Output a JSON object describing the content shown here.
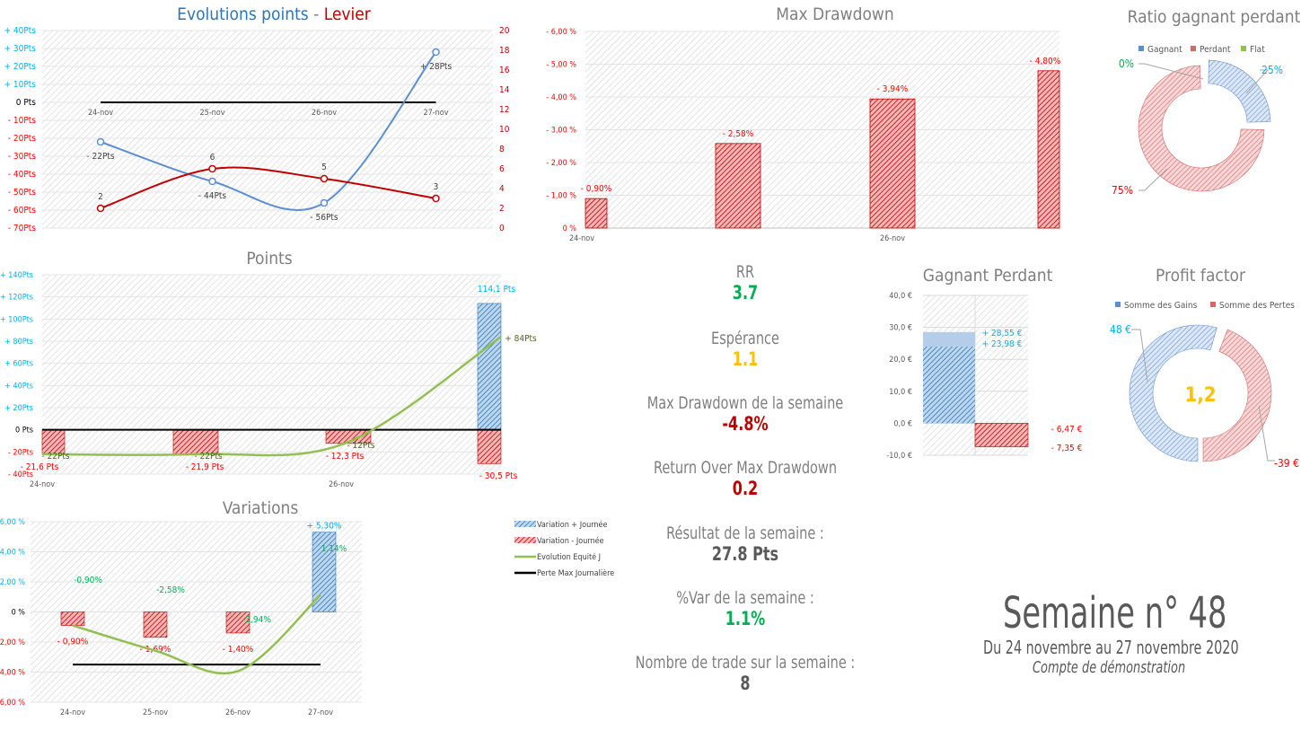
{
  "colors": {
    "blue": "#5b8fd1",
    "blue_fill": "#2e75b6",
    "red": "#c00000",
    "red_label": "#ff0000",
    "green_line": "#92c050",
    "green_text": "#00b050",
    "cyan_text": "#00b0f0",
    "gold": "#ffc000",
    "grey_text": "#7f7f7f",
    "dark_text": "#595959"
  },
  "charts": {
    "evolution": {
      "title_part1": "Evolutions points",
      "title_sep": " - ",
      "title_part2": "Levier"
    },
    "max_drawdown": {
      "title": "Max Drawdown"
    },
    "ratio": {
      "title": "Ratio gagnant perdant"
    },
    "points": {
      "title": "Points"
    },
    "variations": {
      "title": "Variations"
    },
    "gagnant_perdant": {
      "title": "Gagnant Perdant"
    },
    "profit_factor": {
      "title": "Profit factor",
      "center": "1,2"
    }
  },
  "stats": [
    {
      "label": "RR",
      "value": "3.7",
      "color": "#00b050"
    },
    {
      "label": "Espérance",
      "value": "1.1",
      "color": "#ffc000"
    },
    {
      "label": "Max Drawdown de la semaine",
      "value": "-4.8%",
      "color": "#c00000"
    },
    {
      "label": "Return Over Max Drawdown",
      "value": "0.2",
      "color": "#c00000"
    },
    {
      "label": "Résultat de la semaine :",
      "value": "27.8 Pts",
      "color": "#595959"
    },
    {
      "label": "%Var de la semaine :",
      "value": "1.1%",
      "color": "#00b050"
    },
    {
      "label": "Nombre de trade sur la semaine :",
      "value": "8",
      "color": "#595959"
    }
  ],
  "week": {
    "title": "Semaine n° 48",
    "range": "Du 24 novembre    au    27 novembre 2020",
    "account": "Compte de démonstration"
  },
  "chart_data": [
    {
      "id": "evolution",
      "type": "line",
      "title": "Evolutions points - Levier",
      "categories": [
        "24-nov",
        "25-nov",
        "26-nov",
        "27-nov"
      ],
      "y_left": {
        "range": [
          -70,
          40
        ],
        "ticks": [
          40,
          30,
          20,
          10,
          0,
          -10,
          -20,
          -30,
          -40,
          -50,
          -60,
          -70
        ],
        "tick_labels": [
          "+ 40Pts",
          "+ 30Pts",
          "+ 20Pts",
          "+ 10Pts",
          "0 Pts",
          "- 10Pts",
          "- 20Pts",
          "- 30Pts",
          "- 40Pts",
          "- 50Pts",
          "- 60Pts",
          "- 70Pts"
        ]
      },
      "y_right": {
        "range": [
          0,
          20
        ],
        "ticks": [
          20,
          18,
          16,
          14,
          12,
          10,
          8,
          6,
          4,
          2,
          0
        ]
      },
      "series": [
        {
          "name": "Points",
          "axis": "left",
          "values": [
            -22,
            -44,
            -56,
            28
          ],
          "labels": [
            "- 22Pts",
            "- 44Pts",
            "- 56Pts",
            "+ 28Pts"
          ]
        },
        {
          "name": "Levier",
          "axis": "right",
          "values": [
            2,
            6,
            5,
            3
          ],
          "labels": [
            "2",
            "6",
            "5",
            "3"
          ]
        }
      ],
      "zero_line": 0
    },
    {
      "id": "max_drawdown",
      "type": "bar",
      "title": "Max Drawdown",
      "categories": [
        "24-nov",
        "25-nov",
        "26-nov",
        "27-nov"
      ],
      "x_tick_labels": [
        "24-nov",
        "",
        "26-nov",
        ""
      ],
      "values": [
        0.9,
        2.58,
        3.94,
        4.8
      ],
      "labels": [
        "- 0,90%",
        "- 2,58%",
        "- 3,94%",
        "- 4,80%"
      ],
      "y_range": [
        0,
        6
      ],
      "tick_labels": [
        "- 6,00 %",
        "- 5,00 %",
        "- 4,00 %",
        "- 3,00 %",
        "- 2,00 %",
        "- 1,00 %",
        "0 %"
      ]
    },
    {
      "id": "ratio",
      "type": "pie",
      "title": "Ratio gagnant perdant",
      "legend": [
        "Gagnant",
        "Perdant",
        "Flat"
      ],
      "values": [
        25,
        75,
        0
      ],
      "labels": [
        "25%",
        "75%",
        "0%"
      ]
    },
    {
      "id": "points",
      "type": "bar",
      "title": "Points",
      "categories": [
        "24-nov",
        "25-nov",
        "26-nov",
        "27-nov"
      ],
      "x_tick_labels": [
        "24-nov",
        "",
        "26-nov",
        ""
      ],
      "y_range": [
        -40,
        140
      ],
      "tick_labels": [
        "+ 140Pts",
        "+ 120Pts",
        "+ 100Pts",
        "+ 80Pts",
        "+ 60Pts",
        "+ 40Pts",
        "+ 20Pts",
        "0 Pts",
        "- 20Pts",
        "- 40Pts"
      ],
      "series": [
        {
          "name": "Gains",
          "values": [
            0,
            0,
            0,
            114.1
          ],
          "labels": [
            "",
            "",
            "",
            "114,1 Pts"
          ]
        },
        {
          "name": "Pertes",
          "values": [
            -21.6,
            -21.9,
            -12.3,
            -30.5
          ],
          "labels": [
            "- 21,6 Pts",
            "- 21,9 Pts",
            "- 12,3 Pts",
            "- 30,5 Pts"
          ]
        },
        {
          "name": "Cumul",
          "values": [
            -22,
            -22,
            -12,
            84
          ],
          "labels": [
            "- 22Pts",
            "- 22Pts",
            "- 12Pts",
            "+ 84Pts"
          ]
        }
      ]
    },
    {
      "id": "variations",
      "type": "bar",
      "title": "Variations",
      "categories": [
        "24-nov",
        "25-nov",
        "26-nov",
        "27-nov"
      ],
      "y_range": [
        -6,
        6
      ],
      "tick_labels": [
        "+ 6,00 %",
        "+ 4,00 %",
        "+ 2,00 %",
        "0 %",
        "- 2,00 %",
        "- 4,00 %",
        "- 6,00 %"
      ],
      "series": [
        {
          "name": "Variation + Journée",
          "values": [
            0,
            0,
            0,
            5.3
          ],
          "labels": [
            "",
            "",
            "",
            "+ 5,30%"
          ]
        },
        {
          "name": "Variation - Journée",
          "values": [
            -0.9,
            -1.69,
            -1.4,
            0
          ],
          "labels": [
            "- 0,90%",
            "- 1,69%",
            "- 1,40%",
            ""
          ]
        },
        {
          "name": "Evolution  Equité J",
          "values": [
            -0.9,
            -2.58,
            -3.94,
            1.14
          ],
          "labels": [
            "-0,90%",
            "-2,58%",
            "-3,94%",
            "1,14%"
          ]
        },
        {
          "name": "Perte Max Journalière",
          "values": [
            -3.5,
            -3.5,
            -3.5,
            -3.5
          ]
        }
      ]
    },
    {
      "id": "gagnant_perdant",
      "type": "bar",
      "title": "Gagnant Perdant",
      "y_range": [
        -10,
        40
      ],
      "tick_labels": [
        "40,0 €",
        "30,0 €",
        "20,0 €",
        "10,0 €",
        "0,0 €",
        "-10,0 €"
      ],
      "series": [
        {
          "name": "Gagnant",
          "values": [
            28.55,
            23.98
          ],
          "labels": [
            "+ 28,55 €",
            "+ 23,98 €"
          ]
        },
        {
          "name": "Perdant",
          "values": [
            -6.47,
            -7.35
          ],
          "labels": [
            "- 6,47 €",
            "- 7,35 €"
          ]
        }
      ]
    },
    {
      "id": "profit_factor",
      "type": "pie",
      "title": "Profit factor",
      "legend": [
        "Somme des Gains",
        "Somme des Pertes"
      ],
      "values": [
        48,
        39
      ],
      "labels": [
        "48 €",
        "-39 €"
      ],
      "center_label": "1,2"
    }
  ]
}
